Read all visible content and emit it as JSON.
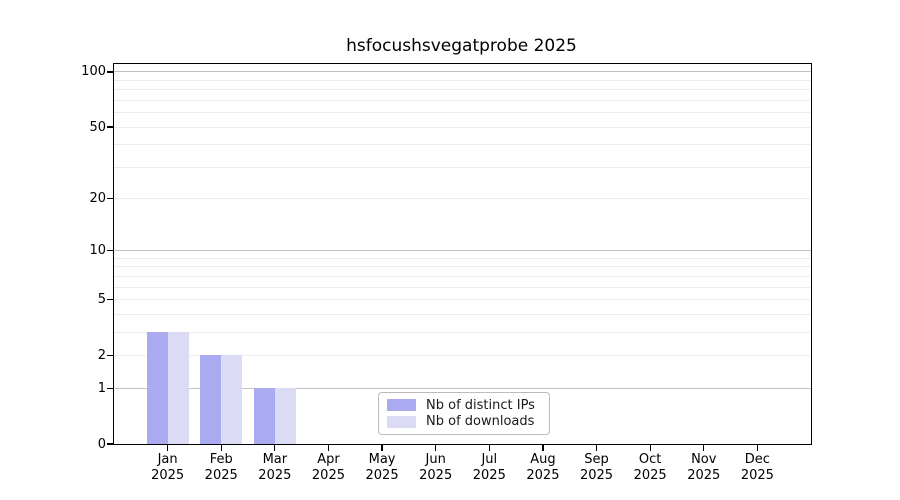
{
  "chart_data": {
    "type": "bar",
    "title": "hsfocushsvegatprobe 2025",
    "categories": [
      {
        "month": "Jan",
        "year": "2025"
      },
      {
        "month": "Feb",
        "year": "2025"
      },
      {
        "month": "Mar",
        "year": "2025"
      },
      {
        "month": "Apr",
        "year": "2025"
      },
      {
        "month": "May",
        "year": "2025"
      },
      {
        "month": "Jun",
        "year": "2025"
      },
      {
        "month": "Jul",
        "year": "2025"
      },
      {
        "month": "Aug",
        "year": "2025"
      },
      {
        "month": "Sep",
        "year": "2025"
      },
      {
        "month": "Oct",
        "year": "2025"
      },
      {
        "month": "Nov",
        "year": "2025"
      },
      {
        "month": "Dec",
        "year": "2025"
      }
    ],
    "series": [
      {
        "name": "Nb of distinct IPs",
        "color": "#aaaaf0",
        "values": [
          3,
          2,
          1,
          0,
          0,
          0,
          0,
          0,
          0,
          0,
          0,
          0
        ]
      },
      {
        "name": "Nb of downloads",
        "color": "#dbdbf6",
        "values": [
          3,
          2,
          1,
          0,
          0,
          0,
          0,
          0,
          0,
          0,
          0,
          0
        ]
      }
    ],
    "y_axis": {
      "scale": "log10(1+value)",
      "max": 110.5,
      "ticks": [
        {
          "value": 100,
          "label": "100"
        },
        {
          "value": 50,
          "label": "50"
        },
        {
          "value": 20,
          "label": "20"
        },
        {
          "value": 10,
          "label": "10"
        },
        {
          "value": 5,
          "label": "5"
        },
        {
          "value": 2,
          "label": "2"
        },
        {
          "value": 1,
          "label": "1"
        },
        {
          "value": 0,
          "label": "0"
        }
      ],
      "major_gridlines": [
        1,
        10,
        100
      ],
      "minor_gridlines": [
        2,
        3,
        4,
        5,
        6,
        7,
        8,
        9,
        20,
        30,
        40,
        50,
        60,
        70,
        80,
        90
      ]
    },
    "xlabel": "",
    "ylabel": "",
    "grid": "horizontal",
    "legend_position": "inside lower-center",
    "legend_entries": [
      "Nb of distinct IPs",
      "Nb of downloads"
    ]
  },
  "colors": {
    "major_grid": "#c2c2c2",
    "minor_grid": "#ececec",
    "spine": "#000000",
    "background": "#ffffff"
  }
}
